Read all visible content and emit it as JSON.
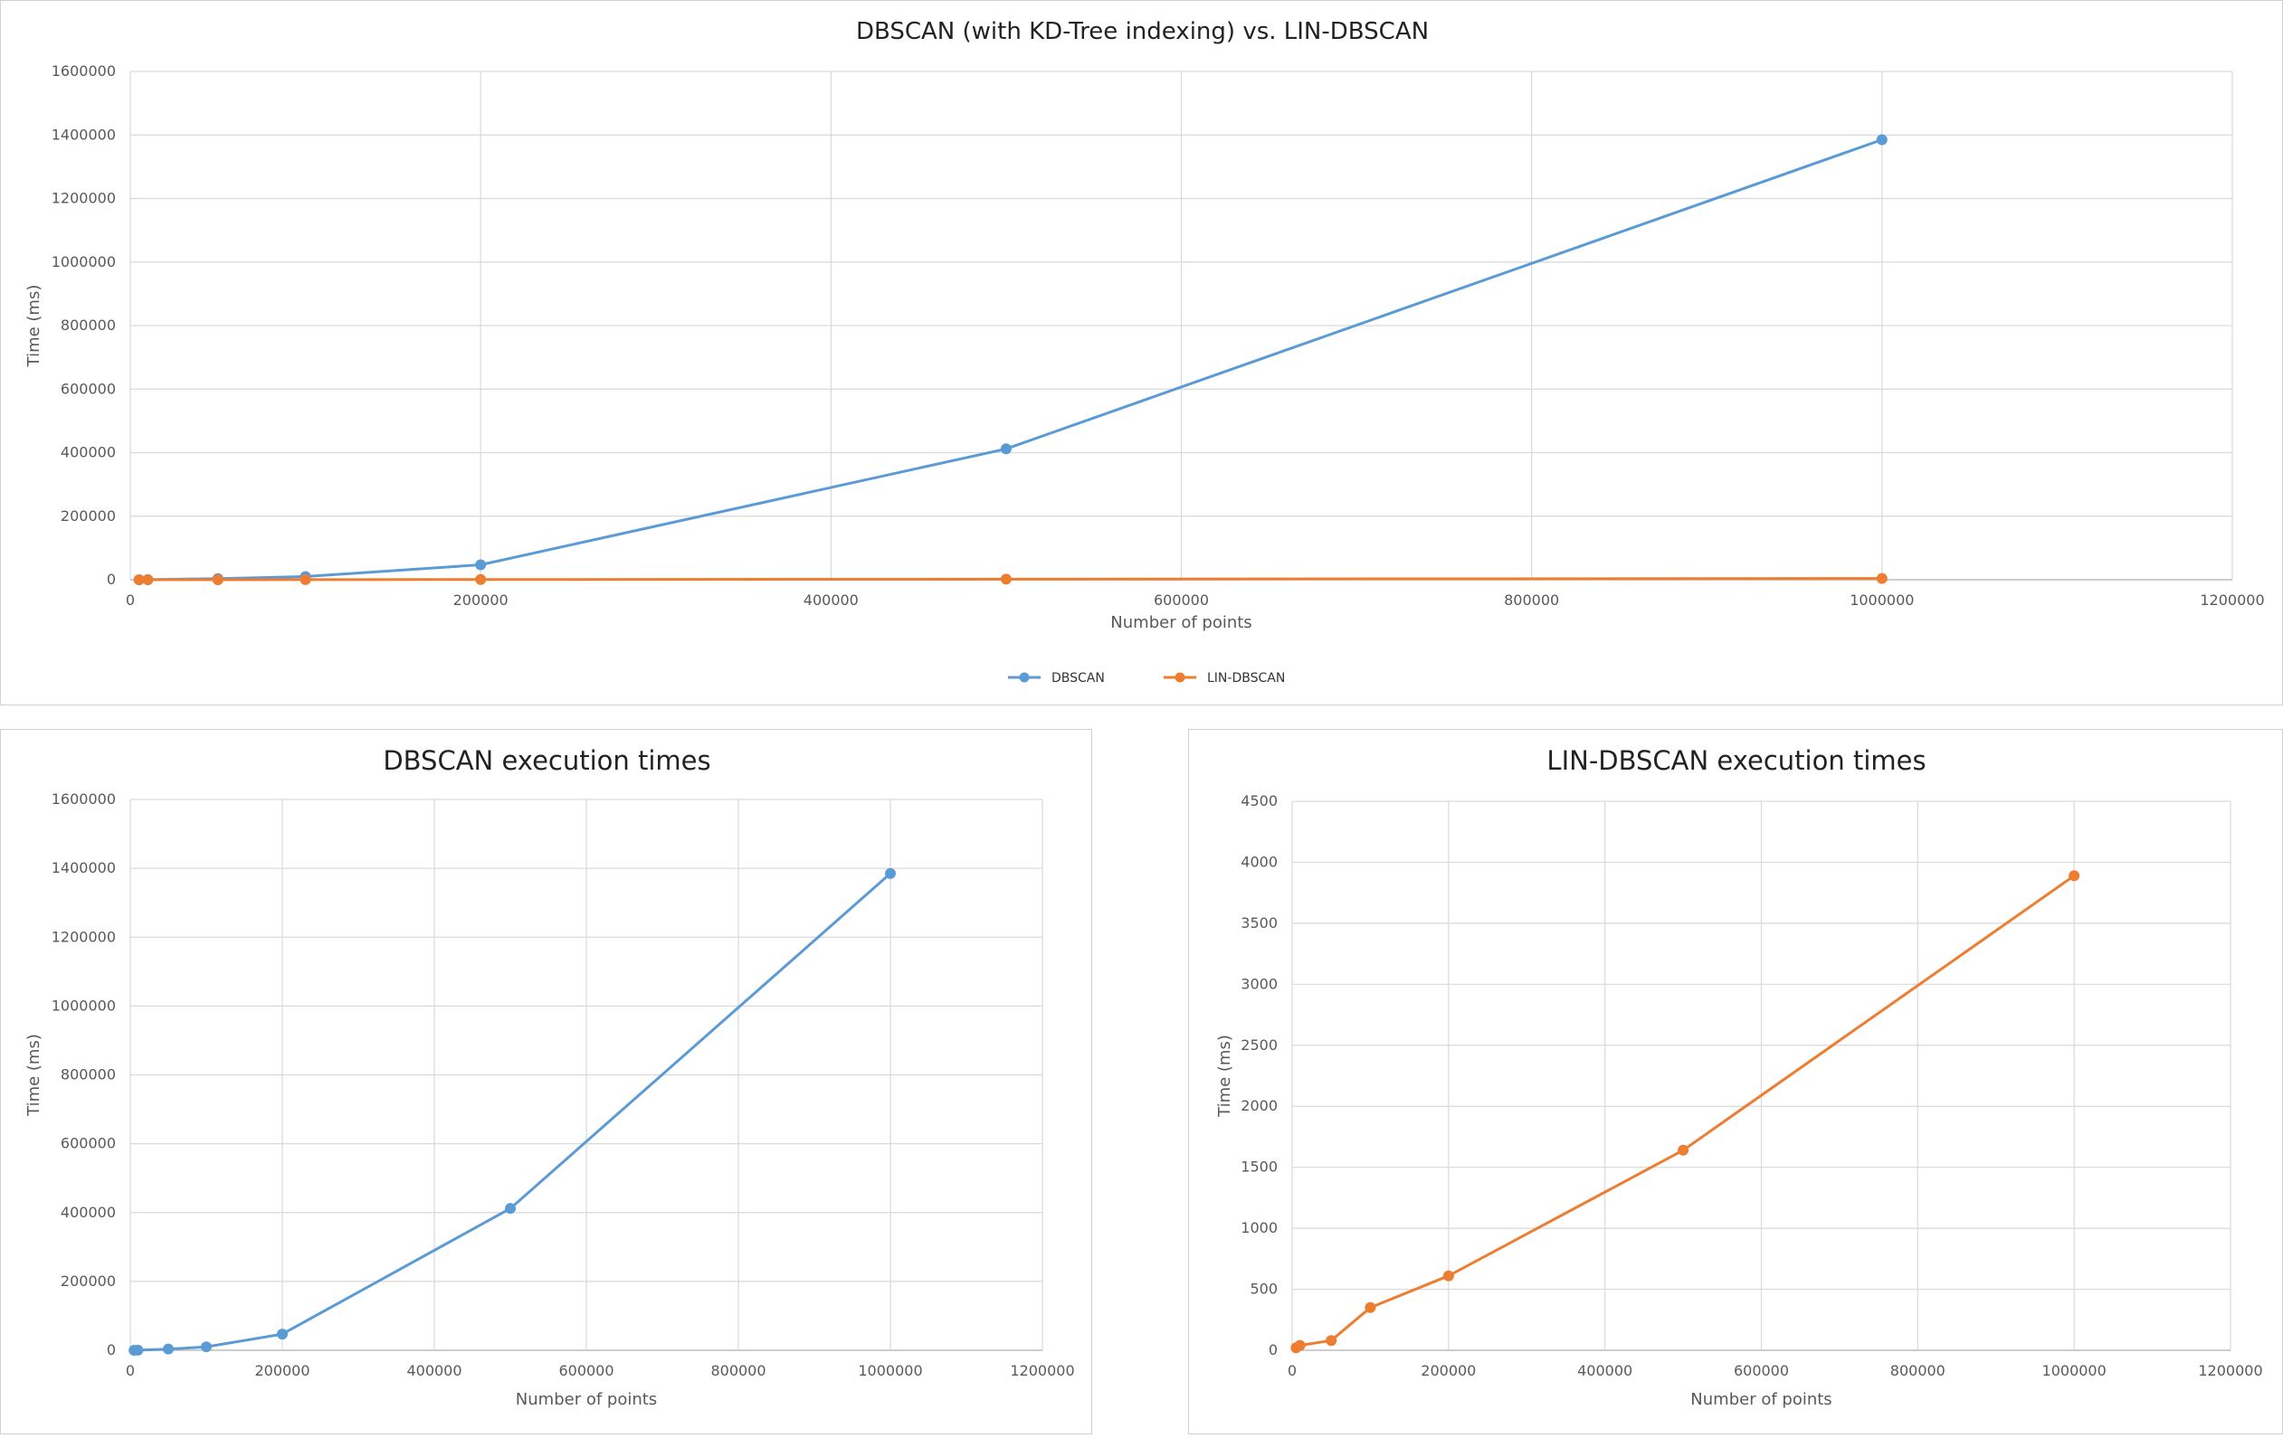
{
  "colors": {
    "dbscan": "#5B9BD5",
    "lin_dbscan": "#ED7D31",
    "grid": "#d9d9d9",
    "text": "#595959"
  },
  "chart_data": [
    {
      "type": "line",
      "title": "DBSCAN (with KD-Tree indexing) vs. LIN-DBSCAN",
      "xlabel": "Number of points",
      "ylabel": "Time (ms)",
      "xlim": [
        0,
        1200000
      ],
      "ylim": [
        0,
        1600000
      ],
      "xticks": [
        0,
        200000,
        400000,
        600000,
        800000,
        1000000,
        1200000
      ],
      "yticks": [
        0,
        200000,
        400000,
        600000,
        800000,
        1000000,
        1200000,
        1400000,
        1600000
      ],
      "grid": true,
      "legend": "bottom",
      "series": [
        {
          "name": "DBSCAN",
          "color": "#5B9BD5",
          "x": [
            5000,
            10000,
            50000,
            100000,
            200000,
            500000,
            1000000
          ],
          "y": [
            50,
            200,
            3500,
            10000,
            47000,
            412000,
            1385000
          ]
        },
        {
          "name": "LIN-DBSCAN",
          "color": "#ED7D31",
          "x": [
            5000,
            10000,
            50000,
            100000,
            200000,
            500000,
            1000000
          ],
          "y": [
            20,
            40,
            80,
            350,
            610,
            1640,
            3890
          ]
        }
      ]
    },
    {
      "type": "line",
      "title": "DBSCAN execution times",
      "xlabel": "Number of points",
      "ylabel": "Time (ms)",
      "xlim": [
        0,
        1200000
      ],
      "ylim": [
        0,
        1600000
      ],
      "xticks": [
        0,
        200000,
        400000,
        600000,
        800000,
        1000000,
        1200000
      ],
      "yticks": [
        0,
        200000,
        400000,
        600000,
        800000,
        1000000,
        1200000,
        1400000,
        1600000
      ],
      "grid": true,
      "legend": "none",
      "series": [
        {
          "color": "#5B9BD5",
          "x": [
            5000,
            10000,
            50000,
            100000,
            200000,
            500000,
            1000000
          ],
          "y": [
            50,
            200,
            3500,
            10000,
            47000,
            412000,
            1385000
          ]
        }
      ]
    },
    {
      "type": "line",
      "title": "LIN-DBSCAN execution times",
      "xlabel": "Number of points",
      "ylabel": "Time (ms)",
      "xlim": [
        0,
        1200000
      ],
      "ylim": [
        0,
        4500
      ],
      "xticks": [
        0,
        200000,
        400000,
        600000,
        800000,
        1000000,
        1200000
      ],
      "yticks": [
        0,
        500,
        1000,
        1500,
        2000,
        2500,
        3000,
        3500,
        4000,
        4500
      ],
      "grid": true,
      "legend": "none",
      "series": [
        {
          "color": "#ED7D31",
          "x": [
            5000,
            10000,
            50000,
            100000,
            200000,
            500000,
            1000000
          ],
          "y": [
            20,
            40,
            80,
            350,
            610,
            1640,
            3890
          ]
        }
      ]
    }
  ]
}
